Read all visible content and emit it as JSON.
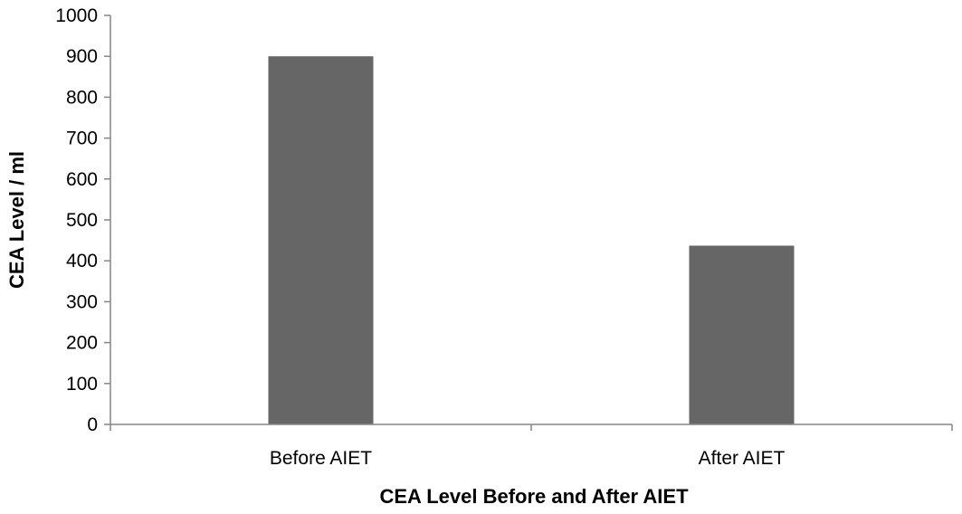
{
  "chart_data": {
    "type": "bar",
    "categories": [
      "Before AIET",
      "After AIET"
    ],
    "values": [
      900,
      437
    ],
    "title": "",
    "xlabel": "CEA Level Before and After AIET",
    "ylabel": "CEA Level / ml",
    "ylim": [
      0,
      1000
    ],
    "yticks": [
      0,
      100,
      200,
      300,
      400,
      500,
      600,
      700,
      800,
      900,
      1000
    ],
    "grid": false,
    "legend": "none",
    "bar_color": "#666666",
    "axis_color": "#868686"
  }
}
